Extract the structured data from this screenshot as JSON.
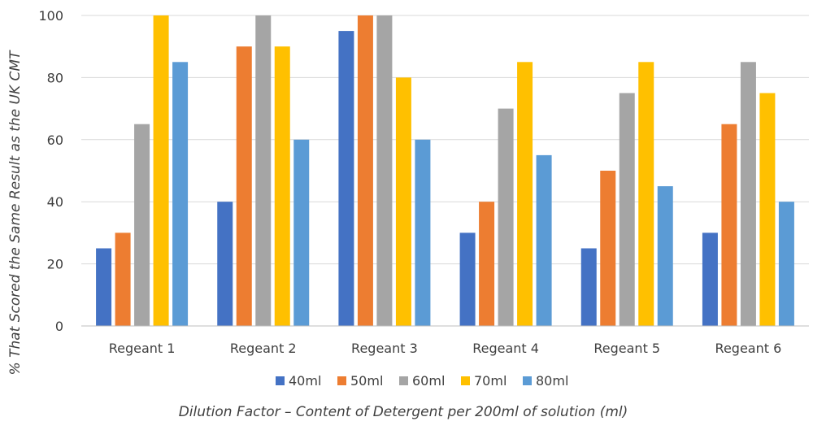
{
  "chart_data": {
    "type": "bar",
    "categories": [
      "Regeant 1",
      "Regeant 2",
      "Regeant 3",
      "Regeant 4",
      "Regeant 5",
      "Regeant 6"
    ],
    "series": [
      {
        "name": "40ml",
        "color": "#4472C4",
        "values": [
          25,
          40,
          95,
          30,
          25,
          30
        ]
      },
      {
        "name": "50ml",
        "color": "#ED7D31",
        "values": [
          30,
          90,
          100,
          40,
          50,
          65
        ]
      },
      {
        "name": "60ml",
        "color": "#A5A5A5",
        "values": [
          65,
          100,
          100,
          70,
          75,
          85
        ]
      },
      {
        "name": "70ml",
        "color": "#FFC000",
        "values": [
          100,
          90,
          80,
          85,
          85,
          75
        ]
      },
      {
        "name": "80ml",
        "color": "#5B9BD5",
        "values": [
          85,
          60,
          60,
          55,
          45,
          40
        ]
      }
    ],
    "xlabel": "Dilution Factor – Content of Detergent per 200ml of solution (ml)",
    "ylabel": "% That Scored the Same Result as the UK CMT",
    "ylim": [
      0,
      100
    ],
    "yticks": [
      0,
      20,
      40,
      60,
      80,
      100
    ],
    "grid": true,
    "legend": "bottom"
  }
}
